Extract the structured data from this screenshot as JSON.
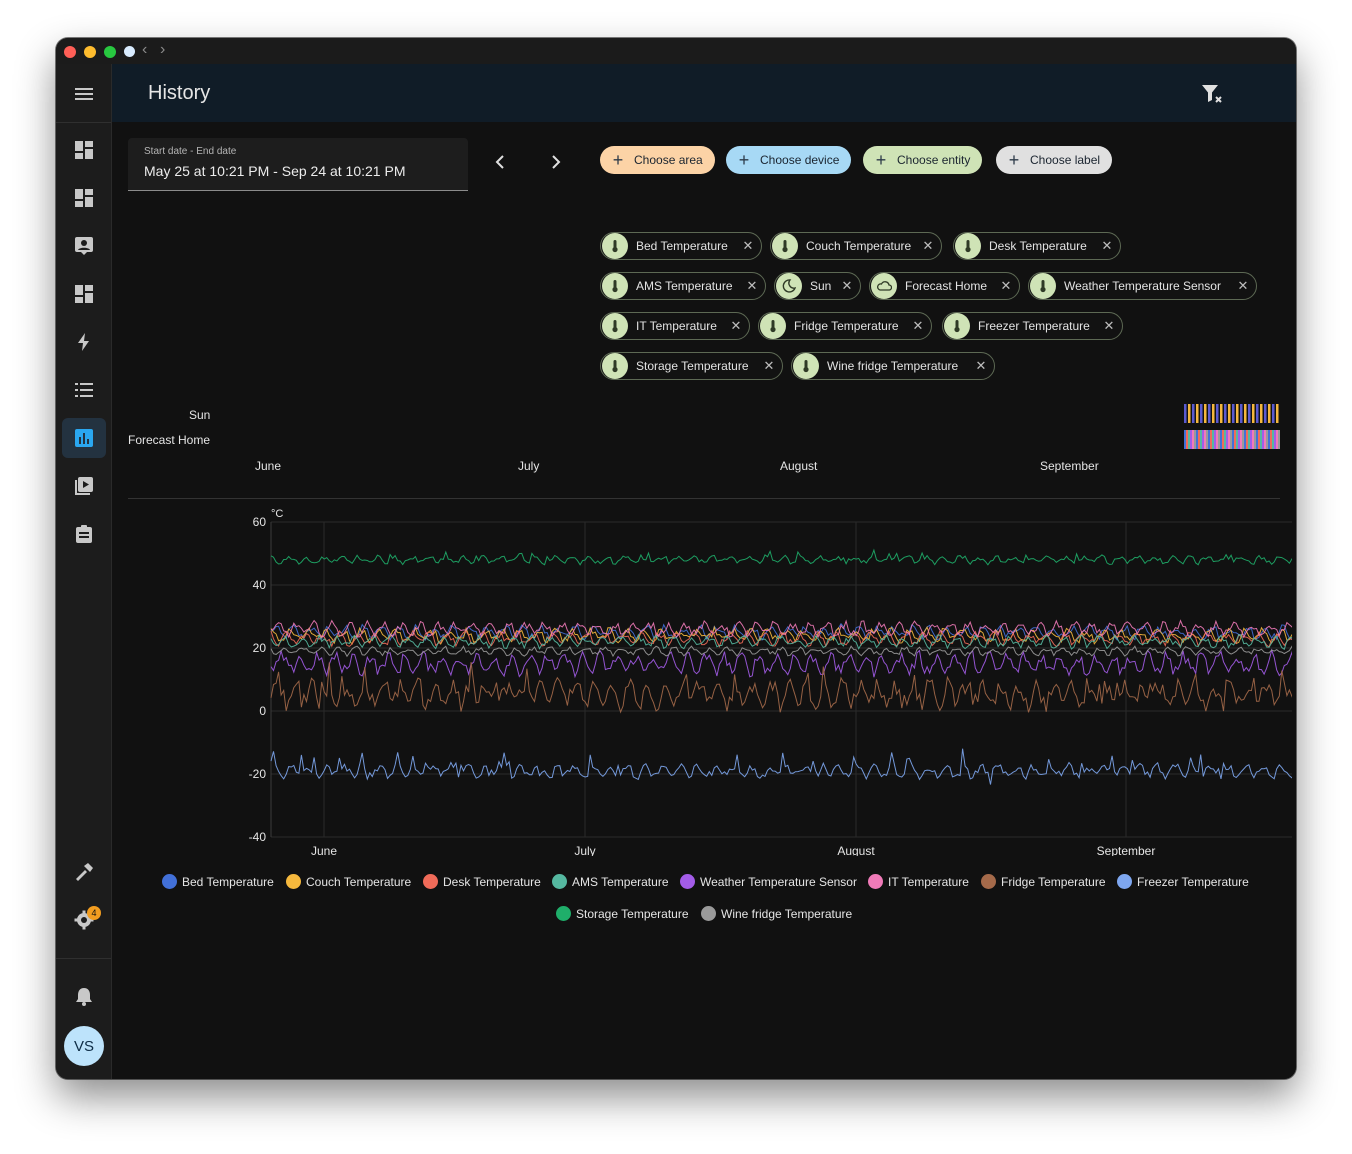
{
  "window": {
    "title": "History"
  },
  "sidebar": {
    "avatar_initials": "VS",
    "settings_badge": "4"
  },
  "date_picker": {
    "label": "Start date - End date",
    "value": "May 25 at 10:21 PM - Sep 24 at 10:21 PM"
  },
  "target_buttons": [
    {
      "label": "Choose area",
      "color": "#fcd3a6"
    },
    {
      "label": "Choose device",
      "color": "#a7d9f5"
    },
    {
      "label": "Choose entity",
      "color": "#cfe3b6"
    },
    {
      "label": "Choose label",
      "color": "#e0e0e0"
    }
  ],
  "entities": [
    {
      "label": "Bed Temperature",
      "icon": "thermometer-icon"
    },
    {
      "label": "Couch Temperature",
      "icon": "thermometer-icon"
    },
    {
      "label": "Desk Temperature",
      "icon": "thermometer-icon"
    },
    {
      "label": "AMS Temperature",
      "icon": "thermometer-icon"
    },
    {
      "label": "Sun",
      "icon": "moon-icon"
    },
    {
      "label": "Forecast Home",
      "icon": "cloud-icon"
    },
    {
      "label": "Weather Temperature Sensor",
      "icon": "thermometer-icon"
    },
    {
      "label": "IT Temperature",
      "icon": "thermometer-icon"
    },
    {
      "label": "Fridge Temperature",
      "icon": "thermometer-icon"
    },
    {
      "label": "Freezer Temperature",
      "icon": "thermometer-icon"
    },
    {
      "label": "Storage Temperature",
      "icon": "thermometer-icon"
    },
    {
      "label": "Wine fridge Temperature",
      "icon": "thermometer-icon"
    }
  ],
  "timeline": {
    "rows": [
      "Sun",
      "Forecast Home"
    ],
    "months": [
      "June",
      "July",
      "August",
      "September"
    ]
  },
  "chart_data": {
    "type": "line",
    "ylabel": "°C",
    "ylim": [
      -40,
      60
    ],
    "yticks": [
      60,
      40,
      20,
      0,
      -20,
      -40
    ],
    "xtick_labels": [
      "June",
      "July",
      "August",
      "September"
    ],
    "grid": true,
    "legend_position": "bottom",
    "series": [
      {
        "name": "Bed Temperature",
        "color": "#4270d8",
        "approx_mean": 25
      },
      {
        "name": "Couch Temperature",
        "color": "#f5b83d",
        "approx_mean": 24
      },
      {
        "name": "Desk Temperature",
        "color": "#f06b59",
        "approx_mean": 23
      },
      {
        "name": "AMS Temperature",
        "color": "#55b8a0",
        "approx_mean": 22
      },
      {
        "name": "Weather Temperature Sensor",
        "color": "#a35ce8",
        "approx_mean": 15
      },
      {
        "name": "IT Temperature",
        "color": "#f07ab8",
        "approx_mean": 26
      },
      {
        "name": "Fridge Temperature",
        "color": "#a56a4a",
        "approx_mean": 5
      },
      {
        "name": "Freezer Temperature",
        "color": "#7ea7f0",
        "approx_mean": -19
      },
      {
        "name": "Storage Temperature",
        "color": "#1fae6a",
        "approx_mean": 48
      },
      {
        "name": "Wine fridge Temperature",
        "color": "#9a9a9a",
        "approx_mean": 19
      }
    ]
  }
}
